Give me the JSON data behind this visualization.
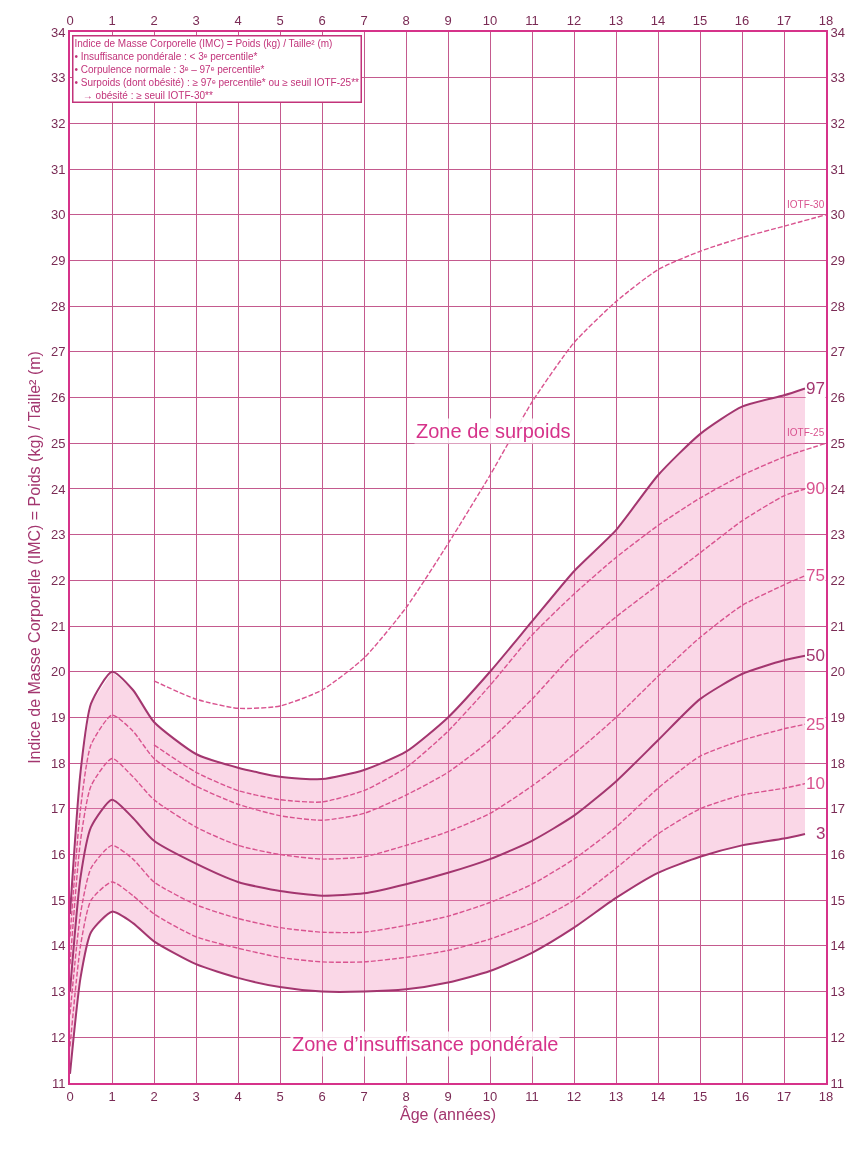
{
  "chart_data": {
    "type": "line",
    "xlabel": "Âge (années)",
    "ylabel": "Indice de Masse Corporelle (IMC) = Poids (kg) / Taille² (m)",
    "x": [
      0,
      0.25,
      0.5,
      1,
      1.5,
      2,
      3,
      4,
      5,
      6,
      7,
      8,
      9,
      10,
      11,
      12,
      13,
      14,
      15,
      16,
      17,
      17.5
    ],
    "series": [
      {
        "name": "97",
        "color": "#a3366f",
        "line_style": "solid",
        "values": [
          14.7,
          17.8,
          19.3,
          20.0,
          19.6,
          18.9,
          18.2,
          17.9,
          17.7,
          17.65,
          17.85,
          18.25,
          19.0,
          20.0,
          21.1,
          22.2,
          23.1,
          24.3,
          25.2,
          25.8,
          26.05,
          26.2
        ]
      },
      {
        "name": "90",
        "color": "#d9538f",
        "line_style": "dashed",
        "values": [
          14.2,
          17.0,
          18.4,
          19.05,
          18.7,
          18.1,
          17.5,
          17.1,
          16.85,
          16.75,
          16.9,
          17.3,
          17.8,
          18.5,
          19.4,
          20.4,
          21.2,
          21.9,
          22.6,
          23.3,
          23.85,
          24.0
        ]
      },
      {
        "name": "75",
        "color": "#d9538f",
        "line_style": "dashed",
        "values": [
          13.6,
          16.3,
          17.5,
          18.1,
          17.7,
          17.2,
          16.6,
          16.2,
          16.0,
          15.9,
          15.95,
          16.2,
          16.5,
          16.9,
          17.5,
          18.2,
          19.0,
          19.9,
          20.75,
          21.45,
          21.9,
          22.1
        ]
      },
      {
        "name": "50",
        "color": "#a3366f",
        "line_style": "solid",
        "values": [
          13.0,
          15.5,
          16.6,
          17.2,
          16.8,
          16.3,
          15.8,
          15.4,
          15.2,
          15.1,
          15.15,
          15.35,
          15.6,
          15.9,
          16.3,
          16.85,
          17.6,
          18.5,
          19.4,
          19.95,
          20.25,
          20.35
        ],
        "lower": [
          11.2,
          13.3,
          14.3,
          14.75,
          14.5,
          14.1,
          13.6,
          13.3,
          13.1,
          13.0,
          13.0,
          13.05,
          13.2,
          13.45,
          13.85,
          14.4,
          15.05,
          15.6,
          15.95,
          16.2,
          16.35,
          16.45
        ],
        "upper": [
          14.7,
          17.8,
          19.3,
          20.0,
          19.6,
          18.9,
          18.2,
          17.9,
          17.7,
          17.65,
          17.85,
          18.25,
          19.0,
          20.0,
          21.1,
          22.2,
          23.1,
          24.3,
          25.2,
          25.8,
          26.05,
          26.2
        ]
      },
      {
        "name": "25",
        "color": "#d9538f",
        "line_style": "dashed",
        "values": [
          12.5,
          14.7,
          15.7,
          16.2,
          15.9,
          15.4,
          14.9,
          14.6,
          14.4,
          14.3,
          14.3,
          14.45,
          14.65,
          14.95,
          15.35,
          15.9,
          16.6,
          17.45,
          18.15,
          18.5,
          18.75,
          18.85
        ]
      },
      {
        "name": "10",
        "color": "#d9538f",
        "line_style": "dashed",
        "values": [
          11.8,
          14.0,
          15.0,
          15.4,
          15.1,
          14.7,
          14.2,
          13.95,
          13.75,
          13.65,
          13.65,
          13.75,
          13.9,
          14.15,
          14.5,
          15.0,
          15.7,
          16.45,
          17.0,
          17.3,
          17.45,
          17.55
        ]
      },
      {
        "name": "3",
        "color": "#a3366f",
        "line_style": "solid",
        "values": [
          11.2,
          13.3,
          14.3,
          14.75,
          14.5,
          14.1,
          13.6,
          13.3,
          13.1,
          13.0,
          13.0,
          13.05,
          13.2,
          13.45,
          13.85,
          14.4,
          15.05,
          15.6,
          15.95,
          16.2,
          16.35,
          16.45
        ]
      },
      {
        "name": "IOTF-25",
        "color": "#d9538f",
        "line_style": "dashed",
        "x": [
          2,
          3,
          4,
          5,
          6,
          7,
          8,
          9,
          10,
          11,
          12,
          13,
          14,
          15,
          16,
          17,
          18
        ],
        "values": [
          18.4,
          17.8,
          17.4,
          17.2,
          17.15,
          17.4,
          17.9,
          18.7,
          19.7,
          20.8,
          21.7,
          22.5,
          23.2,
          23.8,
          24.3,
          24.7,
          25.0
        ]
      },
      {
        "name": "IOTF-30",
        "color": "#d9538f",
        "line_style": "dashed",
        "x": [
          2,
          3,
          4,
          5,
          6,
          7,
          8,
          9,
          10,
          11,
          12,
          13,
          14,
          15,
          16,
          17,
          18
        ],
        "values": [
          19.8,
          19.4,
          19.2,
          19.25,
          19.6,
          20.3,
          21.4,
          22.8,
          24.3,
          25.9,
          27.2,
          28.1,
          28.8,
          29.2,
          29.5,
          29.75,
          30.0
        ]
      }
    ],
    "title": "Indice de Masse Corporelle (IMC) = Poids (kg) / Taille² (m)",
    "subtitle": "• Insuffisance pondérale : < 3ᵉ percentile*\n• Corpulence normale : 3ᵉ – 97ᵉ percentile*\n• Surpoids (dont obésité) : ≥ 97ᵉ percentile* ou ≥ seuil IOTF-25**\n   → obésité : ≥ seuil IOTF-30**",
    "annotations": [
      "Zone de surpoids",
      "Zone d’insuffisance pondérale"
    ],
    "xlim": [
      0,
      18
    ],
    "xticks": [
      0,
      1,
      2,
      3,
      4,
      5,
      6,
      7,
      8,
      9,
      10,
      11,
      12,
      13,
      14,
      15,
      16,
      17,
      18
    ],
    "x2lim": [
      0,
      18
    ],
    "x2ticks": [
      0,
      1,
      2,
      3,
      4,
      5,
      6,
      7,
      8,
      9,
      10,
      11,
      12,
      13,
      14,
      15,
      16,
      17,
      18
    ],
    "ylim": [
      11,
      34
    ],
    "yticks": [
      11,
      12,
      13,
      14,
      15,
      16,
      17,
      18,
      19,
      20,
      21,
      22,
      23,
      24,
      25,
      26,
      27,
      28,
      29,
      30,
      31,
      32,
      33,
      34
    ],
    "y2lim": [
      11,
      34
    ],
    "y2ticks": [
      11,
      12,
      13,
      14,
      15,
      16,
      17,
      18,
      19,
      20,
      21,
      22,
      23,
      24,
      25,
      26,
      27,
      28,
      29,
      30,
      31,
      32,
      33,
      34
    ],
    "grid": true,
    "legend": false,
    "marker": "none"
  }
}
